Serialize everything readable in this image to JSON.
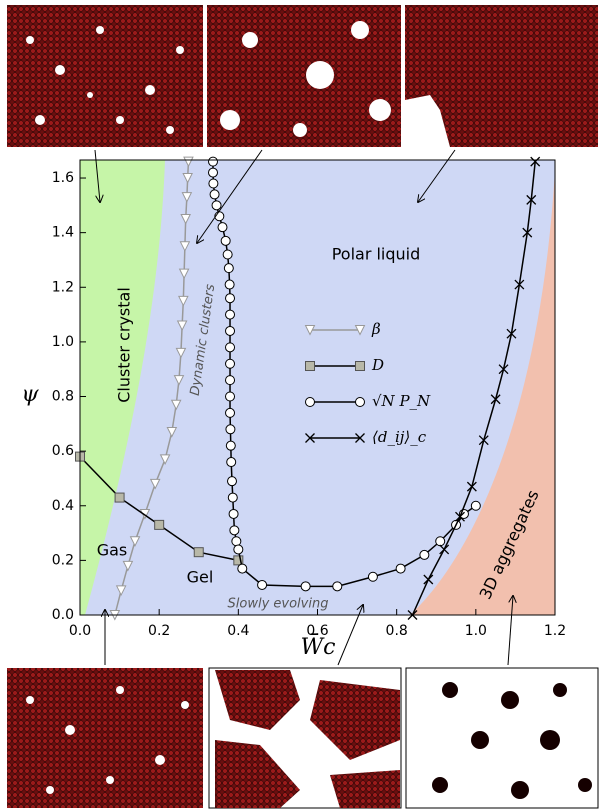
{
  "chart_data": {
    "type": "line",
    "xlabel": "W̄c",
    "ylabel": "ψ",
    "xlim": [
      0,
      1.2
    ],
    "ylim": [
      0,
      1.666
    ],
    "xticks": [
      {
        "value": 0,
        "label": "0.0"
      },
      0.2,
      0.4,
      0.6,
      0.8,
      {
        "value": 1,
        "label": "1.0"
      },
      1.2
    ],
    "yticks": [
      {
        "value": 0,
        "label": "0.0"
      },
      0.2,
      0.4,
      0.6,
      0.8,
      {
        "value": 1,
        "label": "1.0"
      },
      1.2,
      1.4,
      1.6
    ],
    "legend": "center",
    "regions": [
      "Cluster crystal",
      "Polar liquid",
      "Dynamic clusters",
      "Gas",
      "Gel",
      "Slowly evolving",
      "3D aggregates"
    ],
    "series": [
      {
        "name": "β",
        "color": "#999999",
        "marker": "triangle",
        "x": [
          0.088,
          0.104,
          0.121,
          0.139,
          0.164,
          0.19,
          0.215,
          0.232,
          0.243,
          0.25,
          0.255,
          0.258,
          0.261,
          0.263,
          0.265,
          0.267,
          0.27,
          0.272,
          0.274
        ],
        "values": [
          0,
          0.09,
          0.18,
          0.27,
          0.37,
          0.48,
          0.57,
          0.67,
          0.77,
          0.86,
          0.96,
          1.06,
          1.15,
          1.25,
          1.35,
          1.45,
          1.53,
          1.6,
          1.66
        ]
      },
      {
        "name": "D",
        "color": "#000000",
        "marker": "square",
        "x": [
          0,
          0.1,
          0.2,
          0.3,
          0.4
        ],
        "values": [
          0.58,
          0.43,
          0.33,
          0.23,
          0.2
        ]
      },
      {
        "name": "√N P_N",
        "color": "#000000",
        "marker": "circle",
        "x": [
          0.336,
          0.336,
          0.337,
          0.34,
          0.345,
          0.352,
          0.36,
          0.368,
          0.373,
          0.376,
          0.378,
          0.379,
          0.379,
          0.379,
          0.379,
          0.379,
          0.379,
          0.379,
          0.379,
          0.38,
          0.381,
          0.382,
          0.384,
          0.386,
          0.388,
          0.39,
          0.395,
          0.4,
          0.41,
          0.46,
          0.57,
          0.65,
          0.74,
          0.81,
          0.87,
          0.91,
          0.95,
          0.97,
          1.0
        ],
        "values": [
          1.66,
          1.62,
          1.58,
          1.54,
          1.5,
          1.46,
          1.42,
          1.37,
          1.32,
          1.27,
          1.21,
          1.16,
          1.1,
          1.04,
          0.98,
          0.92,
          0.86,
          0.8,
          0.74,
          0.68,
          0.62,
          0.56,
          0.49,
          0.43,
          0.37,
          0.31,
          0.27,
          0.24,
          0.17,
          0.11,
          0.105,
          0.105,
          0.14,
          0.17,
          0.22,
          0.27,
          0.33,
          0.37,
          0.4
        ]
      },
      {
        "name": "⟨d_ij⟩_c",
        "color": "#000000",
        "marker": "x",
        "x": [
          0.84,
          0.88,
          0.92,
          0.96,
          0.99,
          1.02,
          1.05,
          1.07,
          1.09,
          1.11,
          1.13,
          1.14,
          1.15
        ],
        "values": [
          0,
          0.13,
          0.24,
          0.36,
          0.47,
          0.64,
          0.79,
          0.9,
          1.03,
          1.21,
          1.4,
          1.52,
          1.66
        ]
      }
    ]
  }
}
